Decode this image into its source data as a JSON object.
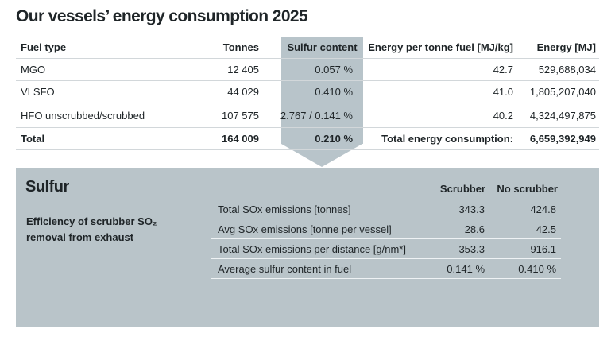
{
  "title": "Our vessels’ energy consumption 2025",
  "fuel_table": {
    "headers": {
      "fuel_type": "Fuel type",
      "tonnes": "Tonnes",
      "sulfur": "Sulfur content",
      "energy_per_tonne": "Energy per tonne fuel [MJ/kg]",
      "energy": "Energy [MJ]"
    },
    "rows": [
      {
        "fuel": "MGO",
        "tonnes": "12 405",
        "sulfur": "0.057 %",
        "energy_per_tonne": "42.7",
        "energy": "529,688,034"
      },
      {
        "fuel": "VLSFO",
        "tonnes": "44 029",
        "sulfur": "0.410 %",
        "energy_per_tonne": "41.0",
        "energy": "1,805,207,040"
      },
      {
        "fuel": "HFO unscrubbed/scrubbed",
        "tonnes": "107 575",
        "sulfur": "2.767 / 0.141 %",
        "energy_per_tonne": "40.2",
        "energy": "4,324,497,875"
      }
    ],
    "total": {
      "label": "Total",
      "tonnes": "164 009",
      "sulfur": "0.210 %",
      "energy_label": "Total energy consumption:",
      "energy": "6,659,392,949"
    }
  },
  "sulfur_panel": {
    "title": "Sulfur",
    "efficiency_label": "Efficiency of scrubber SO₂ removal from exhaust",
    "col_scrubber": "Scrubber",
    "col_no_scrubber": "No scrubber",
    "rows": [
      {
        "label": "Total SOx emissions [tonnes]",
        "scrubber": "343.3",
        "no_scrubber": "424.8"
      },
      {
        "label": "Avg SOx emissions [tonne per vessel]",
        "scrubber": "28.6",
        "no_scrubber": "42.5"
      },
      {
        "label": "Total SOx emissions per distance [g/nm*]",
        "scrubber": "353.3",
        "no_scrubber": "916.1"
      },
      {
        "label": "Average sulfur content in fuel",
        "scrubber": "0.141 %",
        "no_scrubber": "0.410 %"
      }
    ]
  },
  "colors": {
    "panel": "#b9c4c9",
    "highlight_column": "#b8c4ca",
    "text": "#1e2427"
  }
}
